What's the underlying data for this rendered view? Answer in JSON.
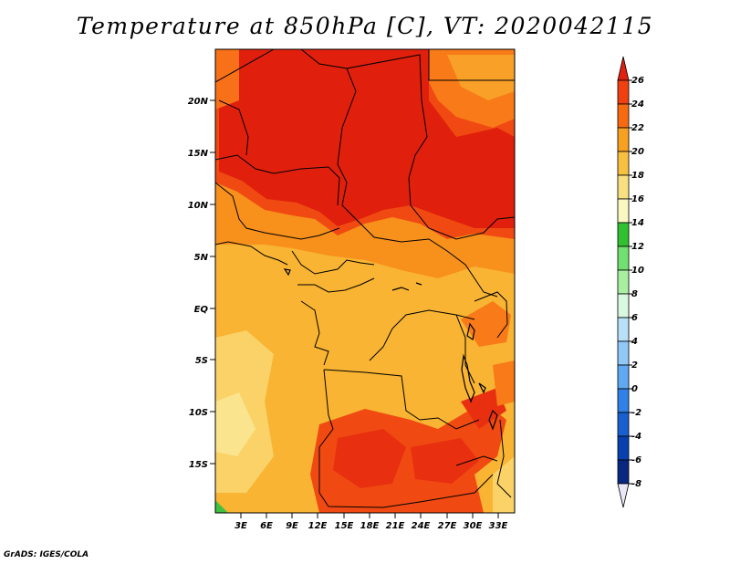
{
  "title": "Temperature at 850hPa [C], VT: 2020042115",
  "credit": "GrADS: IGES/COLA",
  "lat_labels": [
    "20N",
    "15N",
    "10N",
    "5N",
    "EQ",
    "5S",
    "10S",
    "15S"
  ],
  "lon_labels": [
    "3E",
    "6E",
    "9E",
    "12E",
    "15E",
    "18E",
    "21E",
    "24E",
    "27E",
    "30E",
    "33E"
  ],
  "colorbar": {
    "labels": [
      "26",
      "24",
      "22",
      "20",
      "18",
      "16",
      "14",
      "12",
      "10",
      "8",
      "6",
      "4",
      "2",
      "0",
      "-2",
      "-4",
      "-6",
      "-8"
    ],
    "colors": [
      "#e02010",
      "#f04010",
      "#f86a10",
      "#f8a020",
      "#f8c040",
      "#f8e080",
      "#f8f8c0",
      "#30c030",
      "#70e070",
      "#a8f0a0",
      "#d8f8e0",
      "#b8e0f8",
      "#90c8f8",
      "#60a8f0",
      "#3080e8",
      "#1860d0",
      "#0840b0",
      "#082880",
      "#000060"
    ]
  },
  "colors": {
    "hot": "#e0200c",
    "warm": "#f04a12",
    "orange": "#f8a828",
    "light_orange": "#f8be40",
    "pale": "#fad874",
    "land_border": "#000000"
  }
}
